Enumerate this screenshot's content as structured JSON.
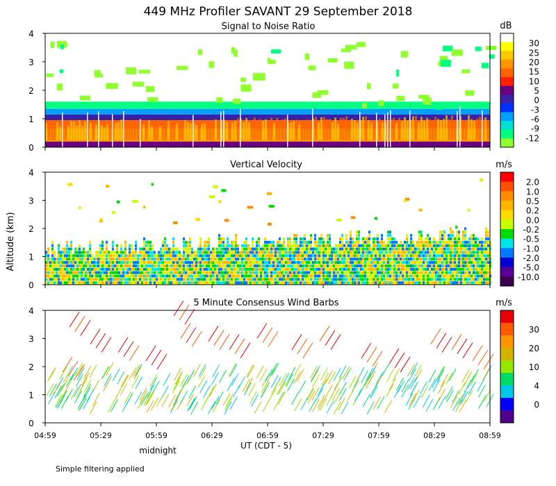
{
  "title": "449 MHz Profiler SAVANT 29 September 2018",
  "ylabel": "Altitude (km)",
  "xlabel": "UT  (CDT - 5)",
  "midnight_label": "midnight",
  "footer_note": "Simple filtering applied",
  "x_ticks": [
    "04:59",
    "05:29",
    "05:59",
    "06:29",
    "06:59",
    "07:29",
    "07:59",
    "08:29",
    "08:59"
  ],
  "y_ticks": [
    "0",
    "1",
    "2",
    "3",
    "4"
  ],
  "chart_data": [
    {
      "type": "heatmap",
      "title": "Signal to Noise Ratio",
      "unit": "dB",
      "ylim": [
        0,
        4
      ],
      "colorbar": {
        "labels": [
          "30",
          "25",
          "20",
          "15",
          "10",
          "5",
          "0",
          "-3",
          "-6",
          "-9",
          "-12"
        ],
        "colors": [
          "#ffffff",
          "#ffff00",
          "#ffc800",
          "#ff9600",
          "#ff6400",
          "#ff2000",
          "#6a0080",
          "#3a22a8",
          "#0030ff",
          "#00a0ff",
          "#00e0d0",
          "#00ff80",
          "#90ff30"
        ]
      },
      "layers": [
        {
          "from_km": 0.0,
          "to_km": 0.2,
          "color": "#6a0080"
        },
        {
          "from_km": 0.2,
          "to_km": 0.65,
          "color": "#ff9600"
        },
        {
          "from_km": 0.65,
          "to_km": 0.95,
          "color": "#ff6400"
        },
        {
          "from_km": 0.95,
          "to_km": 1.15,
          "color": "#3a22a8"
        },
        {
          "from_km": 1.15,
          "to_km": 1.35,
          "color": "#00a0ff"
        },
        {
          "from_km": 1.35,
          "to_km": 1.6,
          "color": "#00ff80"
        }
      ]
    },
    {
      "type": "heatmap",
      "title": "Vertical Velocity",
      "unit": "m/s",
      "ylim": [
        0,
        4
      ],
      "colorbar": {
        "labels": [
          "2.0",
          "1.0",
          "0.5",
          "0.2",
          "0.0",
          "-0.2",
          "-0.5",
          "-1.0",
          "-2.0",
          "-5.0",
          "-10.0"
        ],
        "colors": [
          "#ff0000",
          "#ff5000",
          "#ff8c00",
          "#ffb400",
          "#ffdc00",
          "#c8ff00",
          "#00dc00",
          "#00e6e6",
          "#0078ff",
          "#0000d2",
          "#5a0096",
          "#3c0050"
        ]
      },
      "layers": [
        {
          "from_km": 0.0,
          "to_km": 1.3,
          "color": "#c8ff00"
        }
      ]
    },
    {
      "type": "scatter",
      "title": "5 Minute Consensus Wind Barbs",
      "unit": "m/s",
      "ylim": [
        0,
        4
      ],
      "colorbar": {
        "labels": [
          "30",
          "20",
          "10",
          "4",
          "0"
        ],
        "colors": [
          "#e60000",
          "#ff5a00",
          "#ff9600",
          "#d2b400",
          "#96e600",
          "#00dc64",
          "#00c8e6",
          "#0000ff",
          "#50008c"
        ]
      }
    }
  ]
}
